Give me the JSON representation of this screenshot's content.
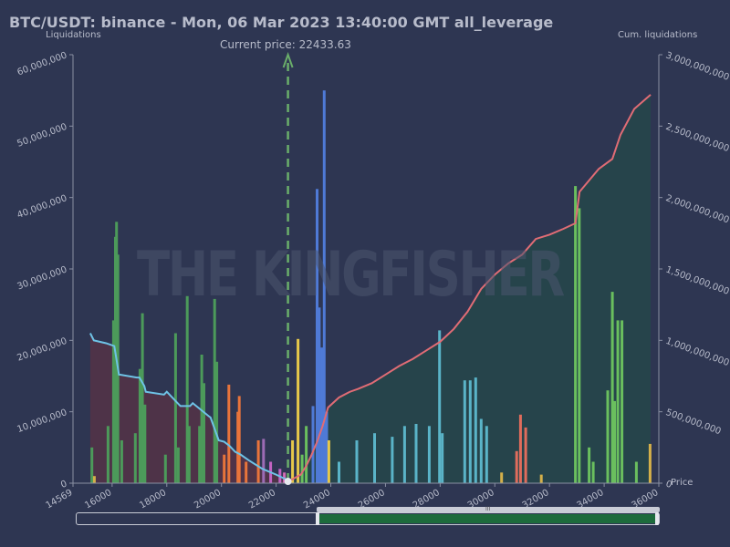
{
  "title": "BTC/USDT: binance - Mon, 06 Mar 2023 13:40:00 GMT all_leverage",
  "current_price_text": "Current price: 22433.63",
  "left_axis_label": "Liquidations",
  "right_axis_label": "Cum. liquidations",
  "x_axis_label": "Price",
  "watermark_text": "THE KINGFISHER",
  "navigator_grip": "III",
  "colors": {
    "background": "#2e3652",
    "cumulative_short": "#e06c75",
    "cumulative_long": "#6ec3e6",
    "current_price_line": "#6aae6a"
  },
  "chart_data": {
    "type": "bar",
    "x_ticks": [
      "14569",
      "16000",
      "18000",
      "20000",
      "22000",
      "24000",
      "26000",
      "28000",
      "30000",
      "32000",
      "34000",
      "36000"
    ],
    "xlim": [
      14569,
      36000
    ],
    "y_left_ticks": [
      "0",
      "10,000,000",
      "20,000,000",
      "30,000,000",
      "40,000,000",
      "50,000,000",
      "60,000,000"
    ],
    "ylim_left": [
      0,
      60000000
    ],
    "y_right_ticks": [
      "0",
      "500,000,000",
      "1,000,000,000",
      "1,500,000,000",
      "2,000,000,000",
      "2,500,000,000",
      "3,000,000,000"
    ],
    "ylim_right": [
      0,
      3000000000
    ],
    "current_price": 22433.63,
    "series": [
      {
        "kind": "bars",
        "bars": [
          {
            "x": 15260,
            "y": 5000000,
            "color": "#4c9a5a"
          },
          {
            "x": 15350,
            "y": 1000000,
            "color": "#d4b04a"
          },
          {
            "x": 15850,
            "y": 8000000,
            "color": "#4c9a5a"
          },
          {
            "x": 16050,
            "y": 22800000,
            "color": "#4c9a5a"
          },
          {
            "x": 16120,
            "y": 34500000,
            "color": "#4c9a5a"
          },
          {
            "x": 16160,
            "y": 36600000,
            "color": "#4c9a5a"
          },
          {
            "x": 16210,
            "y": 32000000,
            "color": "#4c9a5a"
          },
          {
            "x": 16350,
            "y": 6000000,
            "color": "#4c9a5a"
          },
          {
            "x": 16850,
            "y": 7000000,
            "color": "#4c9a5a"
          },
          {
            "x": 17020,
            "y": 16000000,
            "color": "#4c9a5a"
          },
          {
            "x": 17110,
            "y": 23800000,
            "color": "#4c9a5a"
          },
          {
            "x": 17200,
            "y": 11000000,
            "color": "#4c9a5a"
          },
          {
            "x": 17950,
            "y": 4000000,
            "color": "#4c9a5a"
          },
          {
            "x": 18320,
            "y": 21000000,
            "color": "#4c9a5a"
          },
          {
            "x": 18420,
            "y": 5000000,
            "color": "#4c9a5a"
          },
          {
            "x": 18750,
            "y": 26200000,
            "color": "#4c9a5a"
          },
          {
            "x": 18820,
            "y": 8000000,
            "color": "#4c9a5a"
          },
          {
            "x": 19200,
            "y": 8000000,
            "color": "#4c9a5a"
          },
          {
            "x": 19280,
            "y": 18000000,
            "color": "#4c9a5a"
          },
          {
            "x": 19360,
            "y": 14000000,
            "color": "#4c9a5a"
          },
          {
            "x": 19750,
            "y": 25800000,
            "color": "#4c9a5a"
          },
          {
            "x": 19830,
            "y": 17000000,
            "color": "#4c9a5a"
          },
          {
            "x": 20100,
            "y": 4000000,
            "color": "#e8743b"
          },
          {
            "x": 20270,
            "y": 13800000,
            "color": "#e8743b"
          },
          {
            "x": 20600,
            "y": 10000000,
            "color": "#e8743b"
          },
          {
            "x": 20650,
            "y": 12200000,
            "color": "#e8743b"
          },
          {
            "x": 20900,
            "y": 3000000,
            "color": "#e8743b"
          },
          {
            "x": 21350,
            "y": 6000000,
            "color": "#e8743b"
          },
          {
            "x": 21540,
            "y": 6200000,
            "color": "#9c6bb5"
          },
          {
            "x": 21800,
            "y": 3000000,
            "color": "#c463c4"
          },
          {
            "x": 22140,
            "y": 2000000,
            "color": "#c463c4"
          },
          {
            "x": 22300,
            "y": 1500000,
            "color": "#d46bb5"
          },
          {
            "x": 22600,
            "y": 6000000,
            "color": "#e6c84a"
          },
          {
            "x": 22800,
            "y": 20200000,
            "color": "#e6c84a"
          },
          {
            "x": 22950,
            "y": 4000000,
            "color": "#6abf5e"
          },
          {
            "x": 23100,
            "y": 8000000,
            "color": "#6abf5e"
          },
          {
            "x": 23350,
            "y": 10800000,
            "color": "#4f7ad6"
          },
          {
            "x": 23500,
            "y": 41200000,
            "color": "#4f7ad6"
          },
          {
            "x": 23580,
            "y": 24600000,
            "color": "#4f7ad6"
          },
          {
            "x": 23670,
            "y": 19000000,
            "color": "#4f7ad6"
          },
          {
            "x": 23760,
            "y": 55000000,
            "color": "#4f7ad6"
          },
          {
            "x": 23850,
            "y": 10000000,
            "color": "#4f7ad6"
          },
          {
            "x": 23930,
            "y": 6000000,
            "color": "#e6c84a"
          },
          {
            "x": 24300,
            "y": 3000000,
            "color": "#5ab4c8"
          },
          {
            "x": 24950,
            "y": 6000000,
            "color": "#5ab4c8"
          },
          {
            "x": 25600,
            "y": 7000000,
            "color": "#5ab4c8"
          },
          {
            "x": 26250,
            "y": 6500000,
            "color": "#5ab4c8"
          },
          {
            "x": 26700,
            "y": 8000000,
            "color": "#5ab4c8"
          },
          {
            "x": 27120,
            "y": 8300000,
            "color": "#5ab4c8"
          },
          {
            "x": 27600,
            "y": 8000000,
            "color": "#5ab4c8"
          },
          {
            "x": 27980,
            "y": 21400000,
            "color": "#5ab4c8"
          },
          {
            "x": 28080,
            "y": 7000000,
            "color": "#5ab4c8"
          },
          {
            "x": 28900,
            "y": 14400000,
            "color": "#5ab4c8"
          },
          {
            "x": 29100,
            "y": 14400000,
            "color": "#5ab4c8"
          },
          {
            "x": 29300,
            "y": 14800000,
            "color": "#5ab4c8"
          },
          {
            "x": 29500,
            "y": 9000000,
            "color": "#5ab4c8"
          },
          {
            "x": 29700,
            "y": 8000000,
            "color": "#5ab4c8"
          },
          {
            "x": 30800,
            "y": 4500000,
            "color": "#e06c5c"
          },
          {
            "x": 30940,
            "y": 9600000,
            "color": "#e06c5c"
          },
          {
            "x": 31130,
            "y": 7800000,
            "color": "#e06c5c"
          },
          {
            "x": 30250,
            "y": 1500000,
            "color": "#d4b04a"
          },
          {
            "x": 31700,
            "y": 1200000,
            "color": "#d4b04a"
          },
          {
            "x": 32950,
            "y": 41600000,
            "color": "#6abf5e"
          },
          {
            "x": 33090,
            "y": 38500000,
            "color": "#6abf5e"
          },
          {
            "x": 33450,
            "y": 5000000,
            "color": "#6abf5e"
          },
          {
            "x": 33600,
            "y": 3000000,
            "color": "#6abf5e"
          },
          {
            "x": 34130,
            "y": 13000000,
            "color": "#6abf5e"
          },
          {
            "x": 34300,
            "y": 26800000,
            "color": "#6abf5e"
          },
          {
            "x": 34380,
            "y": 11500000,
            "color": "#6abf5e"
          },
          {
            "x": 34500,
            "y": 22800000,
            "color": "#6abf5e"
          },
          {
            "x": 34650,
            "y": 22800000,
            "color": "#6abf5e"
          },
          {
            "x": 35180,
            "y": 3000000,
            "color": "#6abf5e"
          },
          {
            "x": 35680,
            "y": 5500000,
            "color": "#d4b04a"
          }
        ]
      },
      {
        "name": "",
        "kind": "cumulative_long",
        "x": [
          15200,
          15330,
          15780,
          16080,
          16250,
          16270,
          16900,
          17000,
          17180,
          17230,
          17900,
          18000,
          18400,
          18500,
          18850,
          18950,
          19530,
          19600,
          19900,
          20100,
          20300,
          20500,
          20700,
          21000,
          21500,
          22000,
          22433
        ],
        "y": [
          1050000000,
          1000000000,
          980000000,
          960000000,
          760000000,
          760000000,
          740000000,
          740000000,
          680000000,
          640000000,
          620000000,
          640000000,
          560000000,
          540000000,
          540000000,
          560000000,
          470000000,
          460000000,
          300000000,
          290000000,
          260000000,
          220000000,
          200000000,
          160000000,
          100000000,
          60000000,
          20000000
        ]
      },
      {
        "name": "",
        "kind": "cumulative_short",
        "x": [
          22433,
          22900,
          23100,
          23300,
          23500,
          23700,
          23900,
          24300,
          24700,
          25000,
          25500,
          26000,
          26500,
          27000,
          27500,
          28000,
          28500,
          29000,
          29500,
          30000,
          30500,
          31000,
          31500,
          32000,
          32500,
          32950,
          33100,
          33800,
          34300,
          34600,
          35100,
          35700
        ],
        "y": [
          10000000,
          60000000,
          120000000,
          200000000,
          290000000,
          400000000,
          530000000,
          600000000,
          640000000,
          660000000,
          700000000,
          760000000,
          820000000,
          870000000,
          930000000,
          990000000,
          1080000000,
          1200000000,
          1360000000,
          1460000000,
          1540000000,
          1600000000,
          1710000000,
          1740000000,
          1780000000,
          1820000000,
          2040000000,
          2200000000,
          2270000000,
          2440000000,
          2620000000,
          2720000000
        ]
      }
    ],
    "grid": false,
    "legend": "none"
  }
}
